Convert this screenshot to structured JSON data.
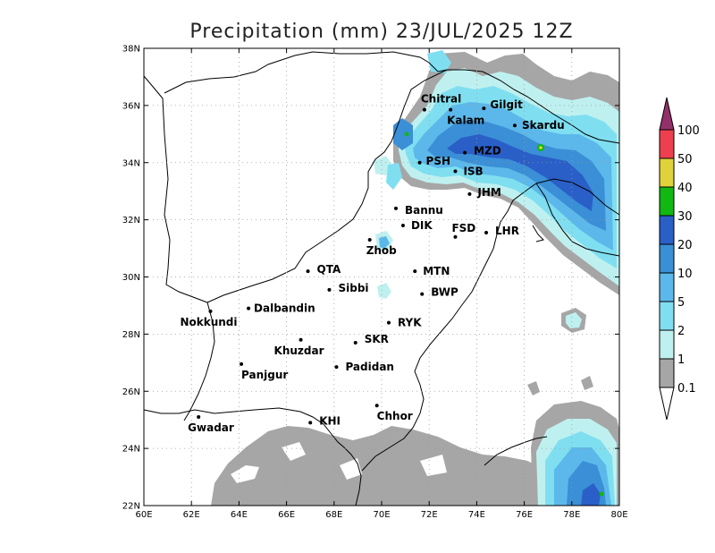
{
  "title": "Precipitation (mm) 23/JUL/2025 12Z",
  "map": {
    "lon_range": [
      60,
      80
    ],
    "lat_range": [
      22,
      38
    ],
    "x_ticks": [
      "60E",
      "62E",
      "64E",
      "66E",
      "68E",
      "70E",
      "72E",
      "74E",
      "76E",
      "78E",
      "80E"
    ],
    "y_ticks": [
      "22N",
      "24N",
      "26N",
      "28N",
      "30N",
      "32N",
      "34N",
      "36N",
      "38N"
    ],
    "grid": "dotted",
    "colors": {
      "gray": "#a6a6a6",
      "c1": "#bff0f0",
      "c2": "#7fdff0",
      "c5": "#5cb8ea",
      "c10": "#3a8fd6",
      "c20": "#2a5fc8",
      "c30": "#11b811",
      "c40": "#e0d23a",
      "c50": "#ee3f4f",
      "c100": "#93306a"
    }
  },
  "cities": [
    {
      "name": "Chitral",
      "lon": 71.8,
      "lat": 35.85
    },
    {
      "name": "Gilgit",
      "lon": 74.3,
      "lat": 35.9
    },
    {
      "name": "Kalam",
      "lon": 72.9,
      "lat": 35.85
    },
    {
      "name": "Skardu",
      "lon": 75.6,
      "lat": 35.3
    },
    {
      "name": "MZD",
      "lon": 73.5,
      "lat": 34.35
    },
    {
      "name": "PSH",
      "lon": 71.6,
      "lat": 34.0
    },
    {
      "name": "ISB",
      "lon": 73.1,
      "lat": 33.7
    },
    {
      "name": "JHM",
      "lon": 73.7,
      "lat": 32.9
    },
    {
      "name": "Bannu",
      "lon": 70.6,
      "lat": 32.4
    },
    {
      "name": "DIK",
      "lon": 70.9,
      "lat": 31.8
    },
    {
      "name": "FSD",
      "lon": 73.1,
      "lat": 31.4
    },
    {
      "name": "LHR",
      "lon": 74.4,
      "lat": 31.55
    },
    {
      "name": "Zhob",
      "lon": 69.5,
      "lat": 31.3
    },
    {
      "name": "QTA",
      "lon": 66.9,
      "lat": 30.2
    },
    {
      "name": "MTN",
      "lon": 71.4,
      "lat": 30.2
    },
    {
      "name": "Sibbi",
      "lon": 67.8,
      "lat": 29.55
    },
    {
      "name": "BWP",
      "lon": 71.7,
      "lat": 29.4
    },
    {
      "name": "Dalbandin",
      "lon": 64.4,
      "lat": 28.9
    },
    {
      "name": "Nokkundi",
      "lon": 62.8,
      "lat": 28.8
    },
    {
      "name": "RYK",
      "lon": 70.3,
      "lat": 28.4
    },
    {
      "name": "SKR",
      "lon": 68.9,
      "lat": 27.7
    },
    {
      "name": "Khuzdar",
      "lon": 66.6,
      "lat": 27.8
    },
    {
      "name": "Padidan",
      "lon": 68.1,
      "lat": 26.85
    },
    {
      "name": "Panjgur",
      "lon": 64.1,
      "lat": 26.95
    },
    {
      "name": "Chhor",
      "lon": 69.8,
      "lat": 25.5
    },
    {
      "name": "KHI",
      "lon": 67.0,
      "lat": 24.9
    },
    {
      "name": "Gwadar",
      "lon": 62.3,
      "lat": 25.1
    }
  ],
  "legend": {
    "labels": [
      "100",
      "50",
      "40",
      "30",
      "20",
      "10",
      "5",
      "2",
      "1",
      "0.1"
    ],
    "colors": [
      "#ee3f4f",
      "#e0d23a",
      "#11b811",
      "#2a5fc8",
      "#3a8fd6",
      "#5cb8ea",
      "#7fdff0",
      "#bff0f0",
      "#a6a6a6"
    ],
    "top_color": "#93306a",
    "bottom_color": "#ffffff"
  }
}
